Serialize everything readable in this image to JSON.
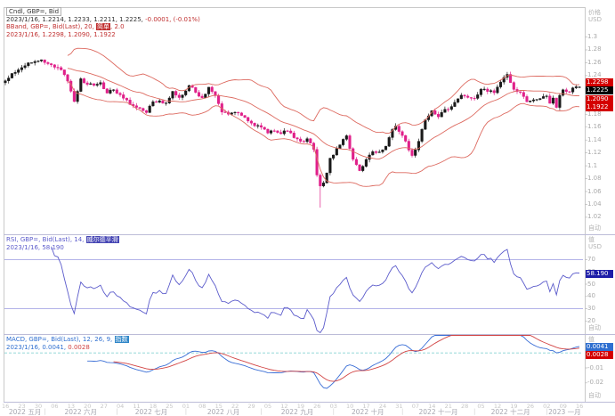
{
  "colors": {
    "bg": "#ffffff",
    "frame": "#c9c9c9",
    "divider": "#bcbcd8",
    "candle_up": "#1a1a1a",
    "candle_down": "#e0218a",
    "bband_line": "#dd6a60",
    "rsi_line": "#5b5bcb",
    "rsi_threshold": "#9a9ae0",
    "macd_line": "#3a6ed6",
    "macd_signal": "#d24444",
    "macd_zero": "#86d2d2",
    "tick_mark": "#bbbbbb",
    "box_band": "#d40000",
    "box_last": "#000000",
    "box_rsi": "#1d1da8",
    "box_macd": "#2f6fd0",
    "box_signal": "#d40000"
  },
  "main_panel": {
    "legend": {
      "line1": "Cndl, GBP=, Bid",
      "line2_vals": "2023/1/16, 1.2214, 1.2233, 1.2211, 1.2225, ",
      "line2_chg": "-0.0001, (-0.01%)",
      "line3_pre": "BBand, GBP=, Bid(Last), 20, ",
      "line3_hl": "简单",
      "line3_post": ", 2.0",
      "line4": "2023/1/16, 1.2298, 1.2090, 1.1922"
    },
    "axis": {
      "title": "价格",
      "unit": "USD",
      "auto_label": "自动",
      "boxes": [
        {
          "value": 1.2298,
          "label": "1.2298",
          "color_key": "box_band",
          "name": "bband-upper-value-box"
        },
        {
          "value": 1.2225,
          "label": "1.2225",
          "color_key": "box_last",
          "name": "last-price-value-box"
        },
        {
          "value": 1.209,
          "label": "1.2090",
          "color_key": "box_band",
          "name": "bband-middle-value-box"
        },
        {
          "value": 1.1922,
          "label": "1.1922",
          "color_key": "box_band",
          "name": "bband-lower-value-box"
        }
      ]
    }
  },
  "rsi_panel": {
    "legend": {
      "line1_pre": "RSI, GBP=, Bid(Last), 14, ",
      "line1_hl": "威尔德平滑",
      "line2": "2023/1/16, 58.190"
    },
    "axis": {
      "title": "值",
      "unit": "USD",
      "auto_label": "自动",
      "boxes": [
        {
          "value": 58.19,
          "label": "58.190",
          "color_key": "box_rsi",
          "name": "rsi-value-box"
        }
      ]
    }
  },
  "macd_panel": {
    "legend": {
      "line1_pre": "MACD, GBP=, Bid(Last), 12, 26, 9, ",
      "line1_hl": "指数",
      "line2_blue": "2023/1/16, 0.0041, ",
      "line2_red": "0.0028"
    },
    "axis": {
      "title": "值",
      "unit": "USD",
      "auto_label": "自动",
      "boxes": [
        {
          "value": 0.0041,
          "label": "0.0041",
          "color_key": "box_macd",
          "name": "macd-value-box"
        },
        {
          "value": 0.0028,
          "label": "0.0028",
          "color_key": "box_signal",
          "name": "macd-signal-value-box"
        }
      ]
    }
  },
  "x_axis": {
    "week_labels": [
      "16",
      "23",
      "30",
      "06",
      "13",
      "20",
      "27",
      "04",
      "11",
      "18",
      "25",
      "01",
      "08",
      "15",
      "22",
      "29",
      "05",
      "12",
      "19",
      "26",
      "03",
      "10",
      "17",
      "24",
      "31",
      "07",
      "14",
      "21",
      "28",
      "05",
      "12",
      "19",
      "26",
      "02",
      "09",
      "16"
    ],
    "months": {
      "labels": [
        "2022 五月",
        "2022 六月",
        "2022 七月",
        "2022 八月",
        "2022 九月",
        "2022 十月",
        "2022 十一月",
        "2022 十二月",
        "2023 一月"
      ],
      "starts": [
        0,
        12,
        34,
        55,
        78,
        100,
        121,
        143,
        165
      ],
      "end": 176
    }
  },
  "chart_data": [
    {
      "type": "candlestick",
      "title": "Cndl, GBP=, Bid",
      "instrument": "GBP=",
      "field": "Bid",
      "interval": "daily",
      "n_points": 176,
      "last_ohlc": {
        "date": "2023/1/16",
        "open": 1.2214,
        "high": 1.2233,
        "low": 1.2211,
        "close": 1.2225,
        "net_change": -0.0001,
        "pct_change": "-0.01%"
      },
      "spike_low": {
        "index": 96,
        "low": 1.035
      },
      "close_anchors": [
        [
          0,
          1.232
        ],
        [
          2,
          1.2433
        ],
        [
          4,
          1.249
        ],
        [
          6,
          1.2554
        ],
        [
          8,
          1.26
        ],
        [
          11,
          1.2646
        ],
        [
          13,
          1.2585
        ],
        [
          15,
          1.253
        ],
        [
          17,
          1.249
        ],
        [
          19,
          1.2316
        ],
        [
          21,
          1.1997
        ],
        [
          23,
          1.2352
        ],
        [
          25,
          1.2263
        ],
        [
          27,
          1.225
        ],
        [
          29,
          1.2292
        ],
        [
          31,
          1.2128
        ],
        [
          33,
          1.218
        ],
        [
          35,
          1.2103
        ],
        [
          37,
          1.2021
        ],
        [
          39,
          1.1932
        ],
        [
          41,
          1.1892
        ],
        [
          43,
          1.1826
        ],
        [
          45,
          1.1994
        ],
        [
          47,
          1.201
        ],
        [
          49,
          1.1975
        ],
        [
          51,
          1.2157
        ],
        [
          53,
          1.206
        ],
        [
          56,
          1.2247
        ],
        [
          58,
          1.214
        ],
        [
          60,
          1.2057
        ],
        [
          62,
          1.222
        ],
        [
          64,
          1.2089
        ],
        [
          66,
          1.1834
        ],
        [
          68,
          1.18
        ],
        [
          70,
          1.1832
        ],
        [
          72,
          1.1782
        ],
        [
          74,
          1.1695
        ],
        [
          76,
          1.1622
        ],
        [
          78,
          1.1598
        ],
        [
          80,
          1.1507
        ],
        [
          82,
          1.1542
        ],
        [
          84,
          1.1498
        ],
        [
          86,
          1.1541
        ],
        [
          88,
          1.1435
        ],
        [
          90,
          1.138
        ],
        [
          92,
          1.1421
        ],
        [
          94,
          1.1255
        ],
        [
          95,
          1.0856
        ],
        [
          96,
          1.0686
        ],
        [
          97,
          1.0734
        ],
        [
          98,
          1.089
        ],
        [
          99,
          1.1117
        ],
        [
          100,
          1.1167
        ],
        [
          102,
          1.1325
        ],
        [
          104,
          1.1466
        ],
        [
          106,
          1.11
        ],
        [
          108,
          1.0924
        ],
        [
          110,
          1.1098
        ],
        [
          112,
          1.122
        ],
        [
          114,
          1.1215
        ],
        [
          116,
          1.1305
        ],
        [
          118,
          1.1563
        ],
        [
          119,
          1.1615
        ],
        [
          121,
          1.147
        ],
        [
          123,
          1.1244
        ],
        [
          124,
          1.116
        ],
        [
          126,
          1.138
        ],
        [
          128,
          1.1714
        ],
        [
          130,
          1.1855
        ],
        [
          132,
          1.176
        ],
        [
          134,
          1.1877
        ],
        [
          136,
          1.192
        ],
        [
          138,
          1.204
        ],
        [
          139,
          1.2095
        ],
        [
          141,
          1.206
        ],
        [
          143,
          1.2048
        ],
        [
          145,
          1.219
        ],
        [
          147,
          1.2154
        ],
        [
          149,
          1.2135
        ],
        [
          151,
          1.23
        ],
        [
          153,
          1.242
        ],
        [
          155,
          1.2185
        ],
        [
          157,
          1.214
        ],
        [
          159,
          1.1993
        ],
        [
          161,
          1.2025
        ],
        [
          163,
          1.2045
        ],
        [
          165,
          1.2083
        ],
        [
          166,
          1.197
        ],
        [
          167,
          1.2053
        ],
        [
          168,
          1.1906
        ],
        [
          169,
          1.2094
        ],
        [
          170,
          1.218
        ],
        [
          171,
          1.2153
        ],
        [
          172,
          1.2146
        ],
        [
          173,
          1.2211
        ],
        [
          174,
          1.2227
        ],
        [
          175,
          1.2225
        ]
      ],
      "ylim": [
        0.995,
        1.345
      ],
      "yticks": [
        1.3,
        1.28,
        1.26,
        1.24,
        1.22,
        1.2,
        1.18,
        1.16,
        1.14,
        1.12,
        1.1,
        1.08,
        1.06,
        1.04,
        1.02
      ],
      "overlay": {
        "name": "BBand",
        "period": 20,
        "stdev_width": 2.0,
        "ma_type": "简单",
        "last_upper": 1.2298,
        "last_middle": 1.209,
        "last_lower": 1.1922
      }
    },
    {
      "type": "line",
      "name": "RSI",
      "period": 14,
      "smoothing": "威尔德平滑",
      "date": "2023/1/16",
      "last_value": 58.19,
      "thresholds": [
        70,
        30
      ],
      "ylim": [
        10,
        90
      ],
      "yticks": [
        70,
        60,
        50,
        40,
        30,
        20
      ]
    },
    {
      "type": "line",
      "name": "MACD",
      "params": {
        "fast": 12,
        "slow": 26,
        "signal": 9,
        "ma_type": "指数"
      },
      "date": "2023/1/16",
      "last_macd": 0.0041,
      "last_signal": 0.0028,
      "ylim": [
        -0.032,
        0.012
      ],
      "yticks": [
        0,
        -0.01,
        -0.02
      ]
    }
  ]
}
